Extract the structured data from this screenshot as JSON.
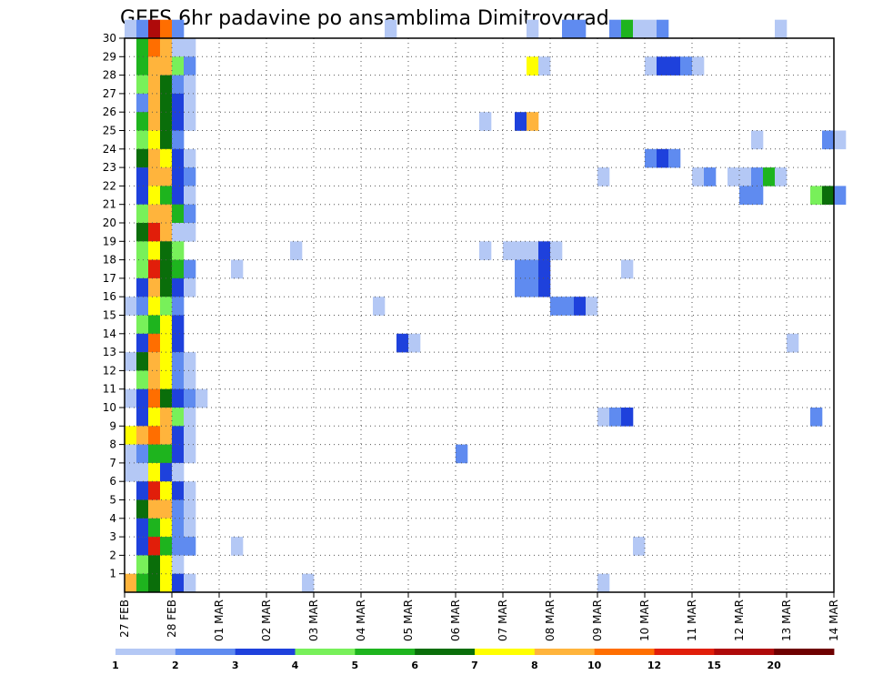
{
  "chart_data": {
    "type": "heatmap",
    "title": "GEFS 6hr padavine po ansamblima Dimitrovgrad",
    "xlabel": "",
    "ylabel": "",
    "y_ticks": [
      "1",
      "2",
      "3",
      "4",
      "5",
      "6",
      "7",
      "8",
      "9",
      "10",
      "11",
      "12",
      "13",
      "14",
      "15",
      "16",
      "17",
      "18",
      "19",
      "20",
      "21",
      "22",
      "23",
      "24",
      "25",
      "26",
      "27",
      "28",
      "29",
      "30"
    ],
    "x_ticks": [
      "27 FEB",
      "28 FEB",
      "01 MAR",
      "02 MAR",
      "03 MAR",
      "04 MAR",
      "05 MAR",
      "06 MAR",
      "07 MAR",
      "08 MAR",
      "09 MAR",
      "10 MAR",
      "11 MAR",
      "12 MAR",
      "13 MAR",
      "14 MAR"
    ],
    "x_range_days": [
      0,
      15
    ],
    "y_range": [
      0,
      30
    ],
    "time_step_hours": 6,
    "grid": true,
    "legend": "bottom",
    "colorbar": {
      "labels": [
        "1",
        "2",
        "3",
        "4",
        "5",
        "6",
        "7",
        "8",
        "10",
        "12",
        "15",
        "20"
      ],
      "colors": [
        "#b4c8f5",
        "#5f8bf0",
        "#1e41dc",
        "#78f05a",
        "#1eb41e",
        "#0a6e0a",
        "#ffff00",
        "#ffb43c",
        "#ff6e00",
        "#e11e0a",
        "#af0a0a",
        "#6e0000"
      ]
    },
    "cells": [
      [
        30,
        0,
        0
      ],
      [
        30,
        1,
        1
      ],
      [
        30,
        2,
        10
      ],
      [
        30,
        3,
        8
      ],
      [
        30,
        4,
        1
      ],
      [
        30,
        22,
        0
      ],
      [
        30,
        34,
        0
      ],
      [
        30,
        37,
        1
      ],
      [
        30,
        38,
        1
      ],
      [
        30,
        41,
        1
      ],
      [
        30,
        42,
        4
      ],
      [
        30,
        43,
        0
      ],
      [
        30,
        44,
        0
      ],
      [
        30,
        45,
        1
      ],
      [
        30,
        55,
        0
      ],
      [
        29,
        1,
        4
      ],
      [
        29,
        2,
        8
      ],
      [
        29,
        3,
        7
      ],
      [
        29,
        4,
        0
      ],
      [
        29,
        5,
        0
      ],
      [
        28,
        1,
        4
      ],
      [
        28,
        2,
        7
      ],
      [
        28,
        3,
        7
      ],
      [
        28,
        4,
        3
      ],
      [
        28,
        5,
        1
      ],
      [
        28,
        34,
        6
      ],
      [
        28,
        35,
        0
      ],
      [
        28,
        44,
        0
      ],
      [
        28,
        45,
        2
      ],
      [
        28,
        46,
        2
      ],
      [
        28,
        47,
        1
      ],
      [
        28,
        48,
        0
      ],
      [
        27,
        1,
        3
      ],
      [
        27,
        2,
        7
      ],
      [
        27,
        3,
        5
      ],
      [
        27,
        4,
        1
      ],
      [
        27,
        5,
        0
      ],
      [
        26,
        1,
        1
      ],
      [
        26,
        2,
        7
      ],
      [
        26,
        3,
        5
      ],
      [
        26,
        4,
        2
      ],
      [
        26,
        5,
        0
      ],
      [
        25,
        1,
        4
      ],
      [
        25,
        2,
        7
      ],
      [
        25,
        3,
        5
      ],
      [
        25,
        4,
        2
      ],
      [
        25,
        5,
        0
      ],
      [
        25,
        30,
        0
      ],
      [
        25,
        33,
        2
      ],
      [
        25,
        34,
        7
      ],
      [
        24,
        1,
        3
      ],
      [
        24,
        2,
        6
      ],
      [
        24,
        3,
        5
      ],
      [
        24,
        4,
        1
      ],
      [
        24,
        53,
        0
      ],
      [
        24,
        59,
        1
      ],
      [
        24,
        60,
        0
      ],
      [
        23,
        1,
        5
      ],
      [
        23,
        2,
        7
      ],
      [
        23,
        3,
        6
      ],
      [
        23,
        4,
        2
      ],
      [
        23,
        5,
        0
      ],
      [
        23,
        44,
        1
      ],
      [
        23,
        45,
        2
      ],
      [
        23,
        46,
        1
      ],
      [
        22,
        1,
        2
      ],
      [
        22,
        2,
        7
      ],
      [
        22,
        3,
        7
      ],
      [
        22,
        4,
        2
      ],
      [
        22,
        5,
        1
      ],
      [
        22,
        40,
        0
      ],
      [
        22,
        48,
        0
      ],
      [
        22,
        49,
        1
      ],
      [
        22,
        51,
        0
      ],
      [
        22,
        52,
        0
      ],
      [
        22,
        53,
        1
      ],
      [
        22,
        54,
        4
      ],
      [
        22,
        55,
        0
      ],
      [
        21,
        1,
        2
      ],
      [
        21,
        2,
        6
      ],
      [
        21,
        3,
        4
      ],
      [
        21,
        4,
        2
      ],
      [
        21,
        5,
        0
      ],
      [
        21,
        52,
        1
      ],
      [
        21,
        53,
        1
      ],
      [
        21,
        58,
        3
      ],
      [
        21,
        59,
        5
      ],
      [
        21,
        60,
        1
      ],
      [
        20,
        1,
        3
      ],
      [
        20,
        2,
        7
      ],
      [
        20,
        3,
        7
      ],
      [
        20,
        4,
        4
      ],
      [
        20,
        5,
        1
      ],
      [
        19,
        1,
        5
      ],
      [
        19,
        2,
        9
      ],
      [
        19,
        3,
        7
      ],
      [
        19,
        4,
        0
      ],
      [
        19,
        5,
        0
      ],
      [
        18,
        1,
        3
      ],
      [
        18,
        2,
        6
      ],
      [
        18,
        3,
        5
      ],
      [
        18,
        4,
        3
      ],
      [
        18,
        14,
        0
      ],
      [
        18,
        30,
        0
      ],
      [
        18,
        32,
        0
      ],
      [
        18,
        33,
        0
      ],
      [
        18,
        34,
        0
      ],
      [
        18,
        35,
        2
      ],
      [
        18,
        36,
        0
      ],
      [
        17,
        1,
        3
      ],
      [
        17,
        2,
        9
      ],
      [
        17,
        3,
        5
      ],
      [
        17,
        4,
        4
      ],
      [
        17,
        5,
        1
      ],
      [
        17,
        9,
        0
      ],
      [
        17,
        33,
        1
      ],
      [
        17,
        34,
        1
      ],
      [
        17,
        35,
        2
      ],
      [
        17,
        42,
        0
      ],
      [
        16,
        1,
        2
      ],
      [
        16,
        2,
        7
      ],
      [
        16,
        3,
        5
      ],
      [
        16,
        4,
        2
      ],
      [
        16,
        5,
        0
      ],
      [
        16,
        33,
        1
      ],
      [
        16,
        34,
        1
      ],
      [
        16,
        35,
        2
      ],
      [
        15,
        0,
        0
      ],
      [
        15,
        1,
        1
      ],
      [
        15,
        2,
        6
      ],
      [
        15,
        3,
        3
      ],
      [
        15,
        4,
        1
      ],
      [
        15,
        21,
        0
      ],
      [
        15,
        36,
        1
      ],
      [
        15,
        37,
        1
      ],
      [
        15,
        38,
        2
      ],
      [
        15,
        39,
        0
      ],
      [
        14,
        1,
        3
      ],
      [
        14,
        2,
        4
      ],
      [
        14,
        3,
        6
      ],
      [
        14,
        4,
        2
      ],
      [
        13,
        1,
        2
      ],
      [
        13,
        2,
        8
      ],
      [
        13,
        3,
        6
      ],
      [
        13,
        4,
        2
      ],
      [
        13,
        23,
        2
      ],
      [
        13,
        24,
        0
      ],
      [
        13,
        56,
        0
      ],
      [
        12,
        0,
        0
      ],
      [
        12,
        1,
        5
      ],
      [
        12,
        2,
        7
      ],
      [
        12,
        3,
        6
      ],
      [
        12,
        4,
        1
      ],
      [
        12,
        5,
        0
      ],
      [
        11,
        1,
        3
      ],
      [
        11,
        2,
        7
      ],
      [
        11,
        3,
        6
      ],
      [
        11,
        4,
        1
      ],
      [
        11,
        5,
        0
      ],
      [
        10,
        0,
        0
      ],
      [
        10,
        1,
        2
      ],
      [
        10,
        2,
        8
      ],
      [
        10,
        3,
        5
      ],
      [
        10,
        4,
        2
      ],
      [
        10,
        5,
        1
      ],
      [
        10,
        6,
        0
      ],
      [
        9,
        1,
        2
      ],
      [
        9,
        2,
        6
      ],
      [
        9,
        3,
        7
      ],
      [
        9,
        4,
        3
      ],
      [
        9,
        5,
        0
      ],
      [
        9,
        40,
        0
      ],
      [
        9,
        41,
        1
      ],
      [
        9,
        42,
        2
      ],
      [
        9,
        58,
        1
      ],
      [
        8,
        0,
        6
      ],
      [
        8,
        1,
        7
      ],
      [
        8,
        2,
        8
      ],
      [
        8,
        3,
        7
      ],
      [
        8,
        4,
        2
      ],
      [
        8,
        5,
        0
      ],
      [
        7,
        0,
        0
      ],
      [
        7,
        1,
        1
      ],
      [
        7,
        2,
        4
      ],
      [
        7,
        3,
        4
      ],
      [
        7,
        4,
        2
      ],
      [
        7,
        5,
        0
      ],
      [
        7,
        28,
        1
      ],
      [
        6,
        0,
        0
      ],
      [
        6,
        1,
        0
      ],
      [
        6,
        2,
        6
      ],
      [
        6,
        3,
        2
      ],
      [
        6,
        4,
        0
      ],
      [
        5,
        1,
        2
      ],
      [
        5,
        2,
        9
      ],
      [
        5,
        3,
        6
      ],
      [
        5,
        4,
        2
      ],
      [
        5,
        5,
        0
      ],
      [
        4,
        1,
        5
      ],
      [
        4,
        2,
        7
      ],
      [
        4,
        3,
        7
      ],
      [
        4,
        4,
        1
      ],
      [
        4,
        5,
        0
      ],
      [
        3,
        1,
        2
      ],
      [
        3,
        2,
        4
      ],
      [
        3,
        3,
        6
      ],
      [
        3,
        4,
        1
      ],
      [
        3,
        5,
        0
      ],
      [
        2,
        1,
        2
      ],
      [
        2,
        2,
        9
      ],
      [
        2,
        3,
        4
      ],
      [
        2,
        4,
        1
      ],
      [
        2,
        5,
        1
      ],
      [
        2,
        9,
        0
      ],
      [
        2,
        43,
        0
      ],
      [
        1,
        1,
        3
      ],
      [
        1,
        2,
        5
      ],
      [
        1,
        3,
        6
      ],
      [
        1,
        4,
        0
      ],
      [
        0,
        0,
        7
      ],
      [
        0,
        1,
        4
      ],
      [
        0,
        2,
        5
      ],
      [
        0,
        3,
        6
      ],
      [
        0,
        4,
        2
      ],
      [
        0,
        5,
        0
      ],
      [
        0,
        15,
        0
      ],
      [
        0,
        40,
        0
      ]
    ]
  }
}
